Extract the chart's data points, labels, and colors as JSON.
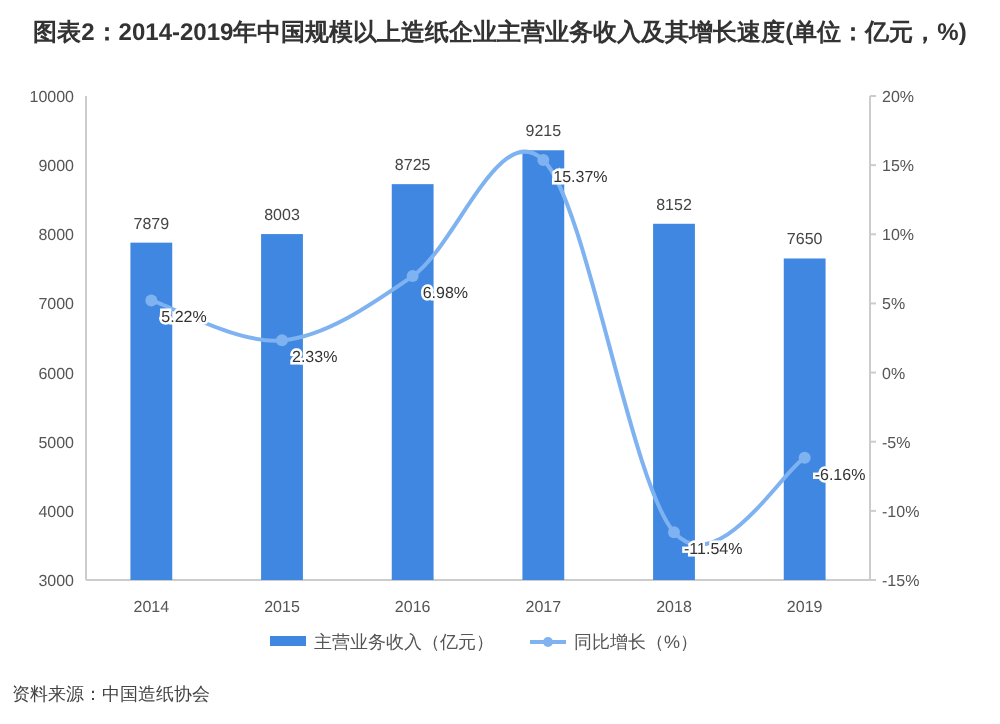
{
  "chart_data": {
    "type": "bar",
    "title": "图表2：2014-2019年中国规模以上造纸企业主营业务收入及其增长速度(单位：亿元，%)",
    "categories": [
      "2014",
      "2015",
      "2016",
      "2017",
      "2018",
      "2019"
    ],
    "series": [
      {
        "name": "主营业务收入（亿元）",
        "color": "#3f87e0",
        "values": [
          7879,
          8003,
          8725,
          9215,
          8152,
          7650
        ]
      },
      {
        "name": "同比增长（%）",
        "type": "line",
        "axis": "y2",
        "color": "#7fb2f0",
        "marker": "circle",
        "values": [
          5.22,
          2.33,
          6.98,
          15.37,
          -11.54,
          -6.16
        ],
        "value_labels": [
          "5.22%",
          "2.33%",
          "6.98%",
          "15.37%",
          "-11.54%",
          "-6.16%"
        ]
      }
    ],
    "ylim": [
      3000,
      10000
    ],
    "yticks": [
      3000,
      4000,
      5000,
      6000,
      7000,
      8000,
      9000,
      10000
    ],
    "y2lim": [
      -15,
      20
    ],
    "y2ticks": [
      {
        "value": -15,
        "label": "-15%"
      },
      {
        "value": -10,
        "label": "-10%"
      },
      {
        "value": -5,
        "label": "-5%"
      },
      {
        "value": 0,
        "label": "0%"
      },
      {
        "value": 5,
        "label": "5%"
      },
      {
        "value": 10,
        "label": "10%"
      },
      {
        "value": 15,
        "label": "15%"
      },
      {
        "value": 20,
        "label": "20%"
      }
    ],
    "data_labels": true,
    "grid": false,
    "legend": "bottom",
    "annotations": [
      "资料来源：中国造纸协会"
    ]
  }
}
